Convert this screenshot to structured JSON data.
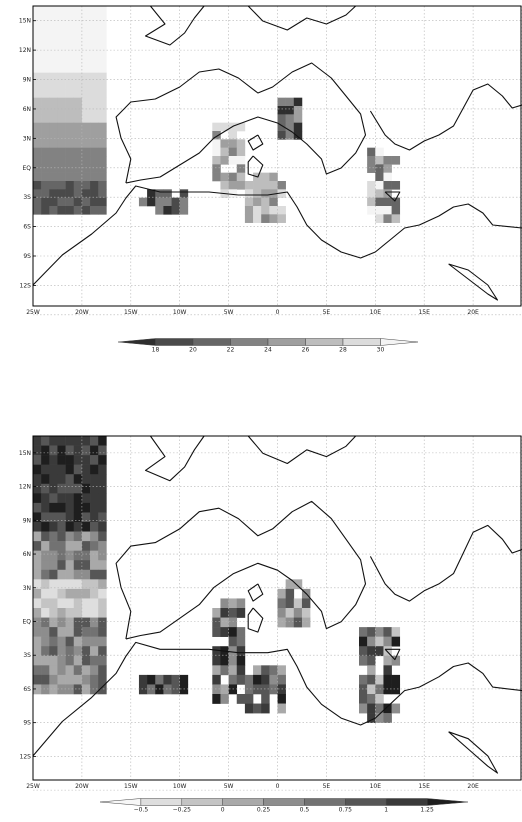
{
  "colors": {
    "frame": "#000000",
    "coast": "#111111",
    "grid": "#b5b5b5"
  },
  "maps": [
    {
      "id": "top",
      "lon_labels": [
        "25W",
        "20W",
        "15W",
        "10W",
        "5W",
        "0",
        "5E",
        "10E",
        "15E",
        "20E"
      ],
      "lat_labels": [
        "15N",
        "12N",
        "9N",
        "6N",
        "3N",
        "EQ",
        "3S",
        "6S",
        "9S",
        "12S"
      ],
      "colorbar": {
        "ticks": [
          "18",
          "20",
          "22",
          "24",
          "26",
          "28",
          "30"
        ],
        "colors": [
          "#2e2e2e",
          "#4a4a4a",
          "#666666",
          "#828282",
          "#9f9f9f",
          "#bdbdbd",
          "#dcdcdc",
          "#f4f4f4"
        ]
      }
    },
    {
      "id": "bottom",
      "lon_labels": [
        "25W",
        "20W",
        "15W",
        "10W",
        "5W",
        "0",
        "5E",
        "10E",
        "15E",
        "20E"
      ],
      "lat_labels": [
        "15N",
        "12N",
        "9N",
        "6N",
        "3N",
        "EQ",
        "3S",
        "6S",
        "9S",
        "12S"
      ],
      "colorbar": {
        "ticks": [
          "−0.5",
          "−0.25",
          "0",
          "0.25",
          "0.5",
          "0.75",
          "1",
          "1.25"
        ],
        "colors": [
          "#f7f7f7",
          "#dedede",
          "#c4c4c4",
          "#a9a9a9",
          "#8d8d8d",
          "#727272",
          "#565656",
          "#3a3a3a",
          "#1e1e1e"
        ]
      }
    }
  ]
}
